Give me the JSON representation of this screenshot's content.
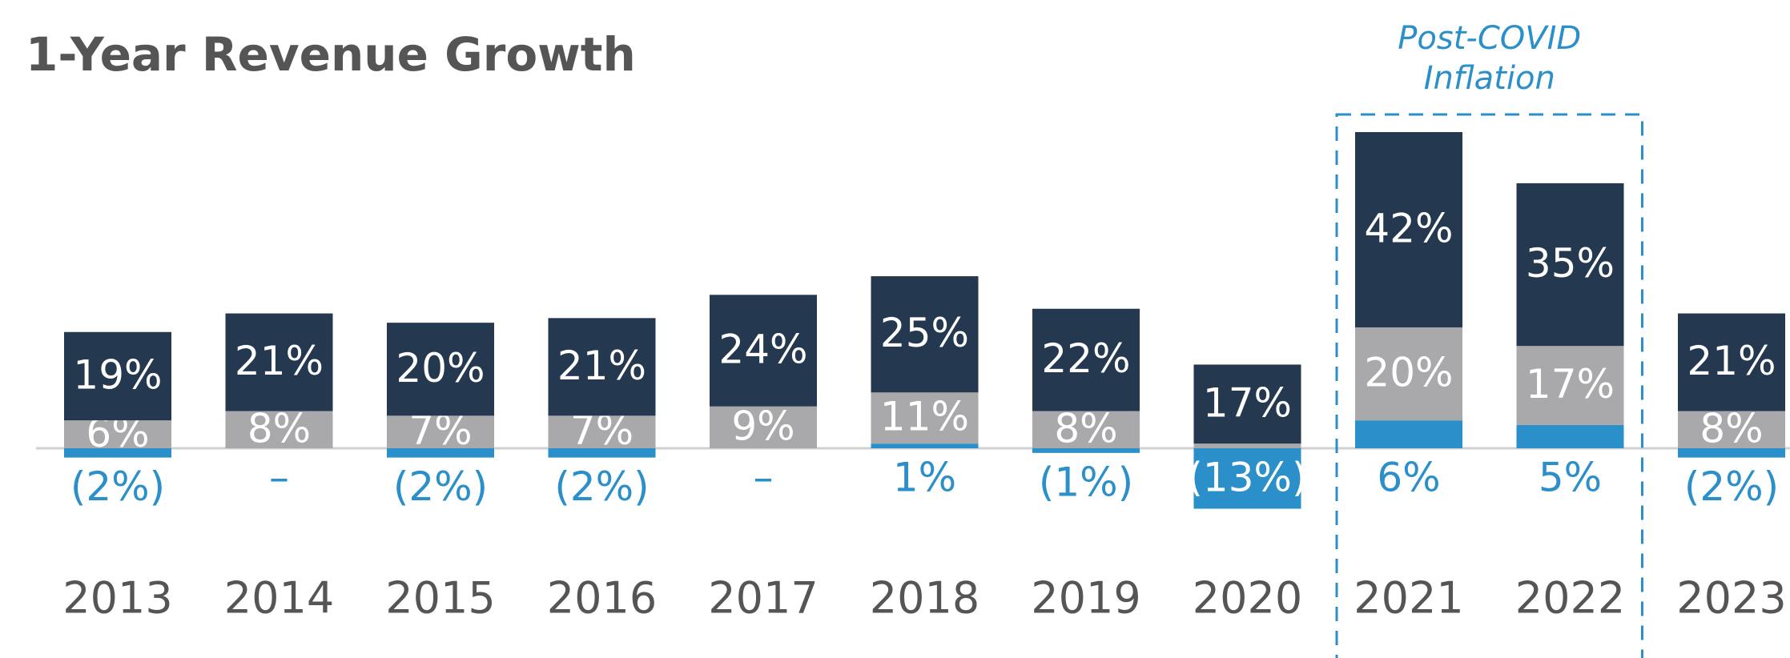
{
  "chart_data": {
    "type": "stacked_bar",
    "title": "1-Year Revenue Growth",
    "categories": [
      "2013",
      "2014",
      "2015",
      "2016",
      "2017",
      "2018",
      "2019",
      "2020",
      "2021",
      "2022",
      "2023"
    ],
    "series": [
      {
        "color": "#2b8fc9",
        "values": [
          -2,
          0,
          -2,
          -2,
          0,
          1,
          -1,
          -13,
          6,
          5,
          -2
        ],
        "value_labels": [
          "(2%)",
          "–",
          "(2%)",
          "(2%)",
          "–",
          "1%",
          "(1%)",
          "(13%)",
          "6%",
          "5%",
          "(2%)"
        ]
      },
      {
        "color": "#a9a8ab",
        "values": [
          6,
          8,
          7,
          7,
          9,
          11,
          8,
          1,
          20,
          17,
          8
        ],
        "value_labels": [
          "6%",
          "8%",
          "7%",
          "7%",
          "9%",
          "11%",
          "8%",
          null,
          "20%",
          "17%",
          "8%"
        ]
      },
      {
        "color": "#243850",
        "values": [
          19,
          21,
          20,
          21,
          24,
          25,
          22,
          17,
          42,
          35,
          21
        ],
        "value_labels": [
          "19%",
          "21%",
          "20%",
          "21%",
          "24%",
          "25%",
          "22%",
          "17%",
          "42%",
          "35%",
          "21%"
        ]
      }
    ],
    "annotation": {
      "lines": [
        "Post-COVID",
        "Inflation"
      ]
    }
  }
}
